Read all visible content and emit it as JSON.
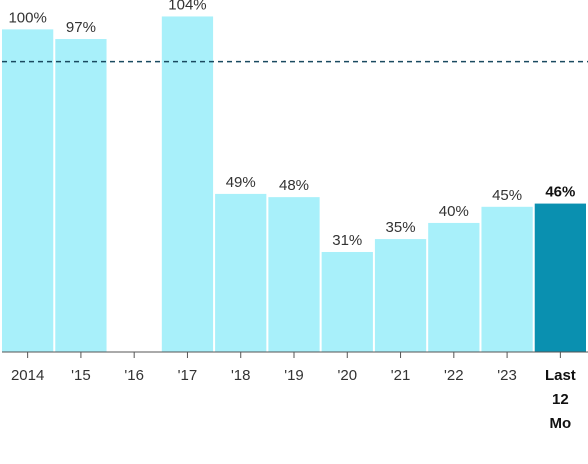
{
  "chart_data": {
    "type": "bar",
    "categories": [
      "2014",
      "'15",
      "'16",
      "'17",
      "'18",
      "'19",
      "'20",
      "'21",
      "'22",
      "'23",
      "Last 12 Mo"
    ],
    "values": [
      100,
      97,
      null,
      104,
      49,
      48,
      31,
      35,
      40,
      45,
      46
    ],
    "value_labels": [
      "100%",
      "97%",
      "",
      "104%",
      "49%",
      "48%",
      "31%",
      "35%",
      "40%",
      "45%",
      "46%"
    ],
    "highlight_index": 10,
    "reference_line": 90,
    "ylim": [
      0,
      106
    ],
    "grid": false,
    "title": "",
    "xlabel": "",
    "ylabel": "",
    "colors": {
      "bar": "#a8f0fa",
      "highlight_bar": "#0a90b0",
      "reference_line": "#1a4a60",
      "axis": "#555555"
    }
  }
}
